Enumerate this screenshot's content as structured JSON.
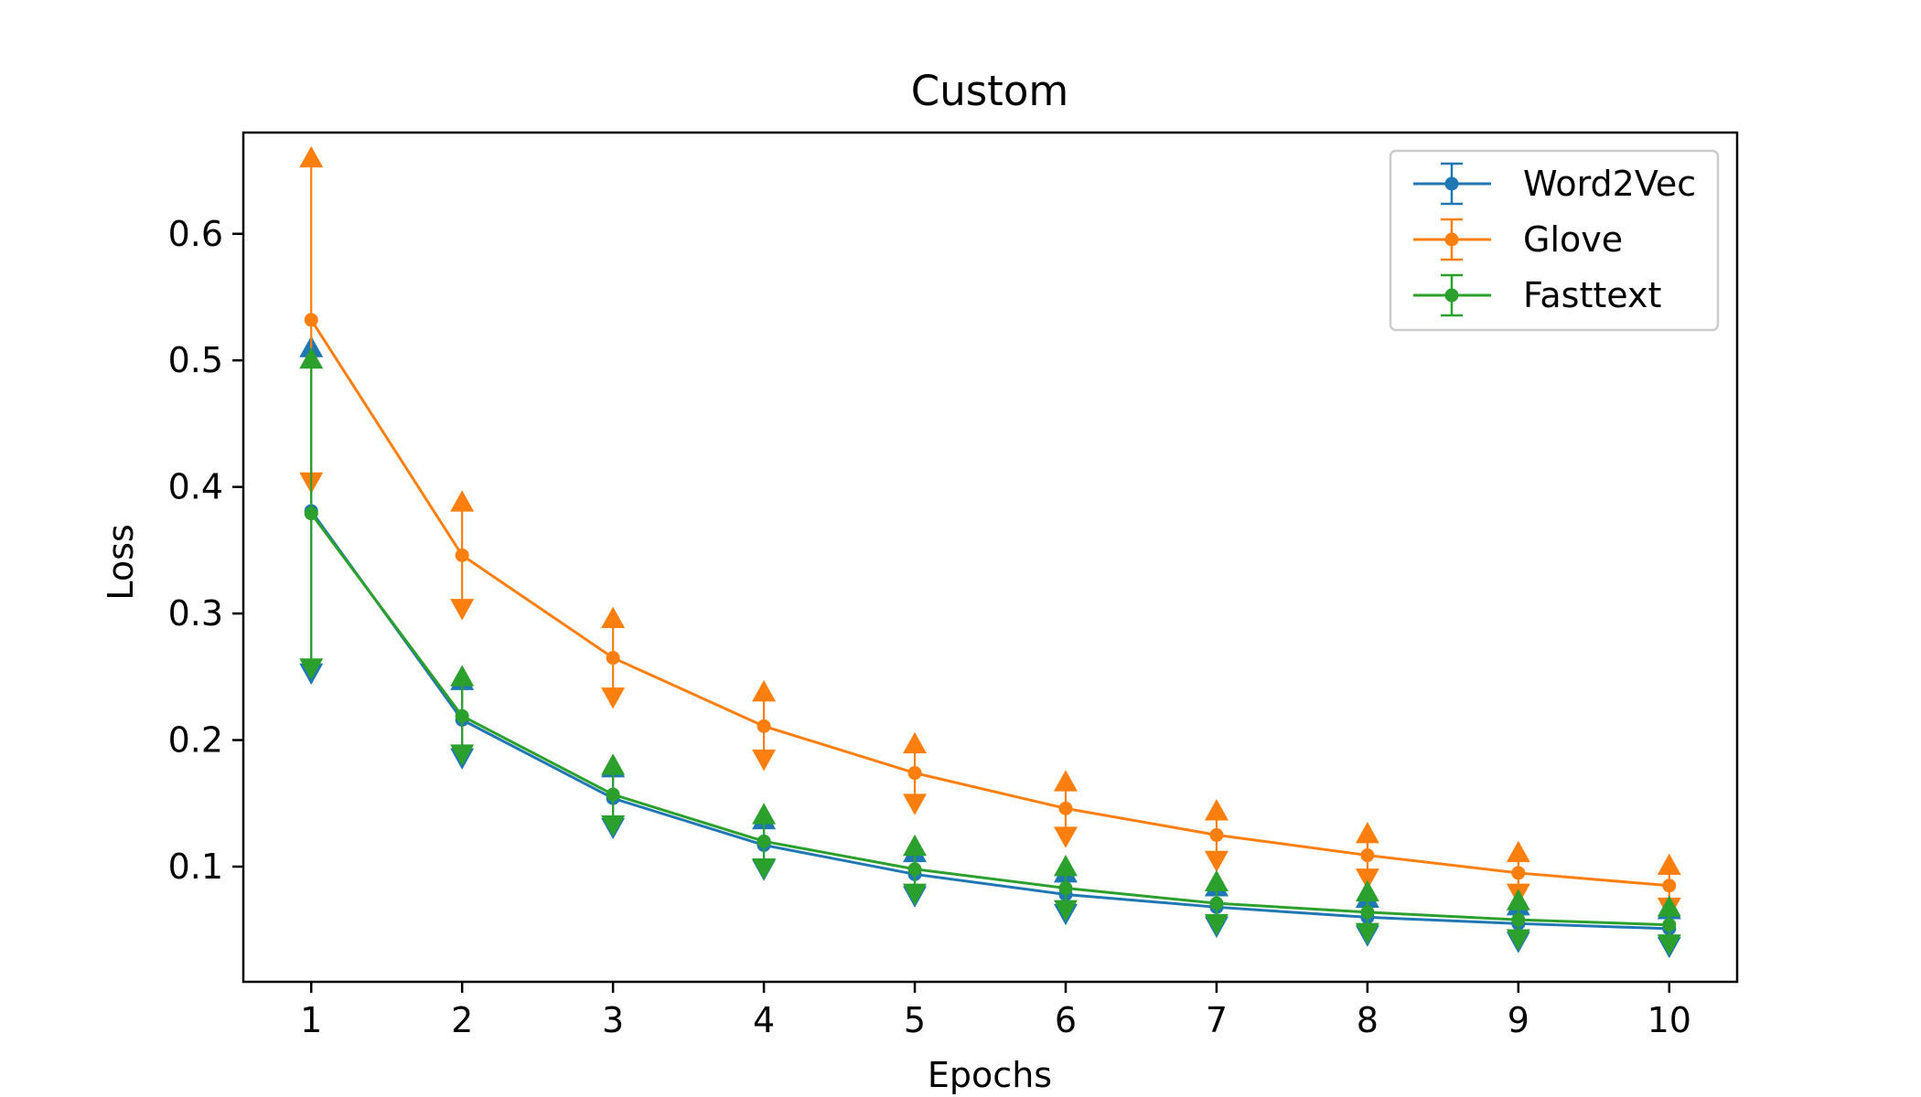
{
  "chart_data": {
    "type": "line",
    "title": "Custom",
    "xlabel": "Epochs",
    "ylabel": "Loss",
    "x": [
      1,
      2,
      3,
      4,
      5,
      6,
      7,
      8,
      9,
      10
    ],
    "xticks": [
      "1",
      "2",
      "3",
      "4",
      "5",
      "6",
      "7",
      "8",
      "9",
      "10"
    ],
    "yticks": [
      "0.1",
      "0.2",
      "0.3",
      "0.4",
      "0.5",
      "0.6"
    ],
    "ytick_values": [
      0.1,
      0.2,
      0.3,
      0.4,
      0.5,
      0.6
    ],
    "xlim": [
      0.55,
      10.45
    ],
    "ylim": [
      0.009,
      0.68
    ],
    "grid": false,
    "legend_position": "upper right",
    "error_bars": "upper and lower limits marked with triangles",
    "series": [
      {
        "name": "Word2Vec",
        "color": "#1f77b4",
        "values": [
          0.381,
          0.216,
          0.154,
          0.117,
          0.094,
          0.078,
          0.068,
          0.06,
          0.055,
          0.051
        ],
        "upper": [
          0.51,
          0.247,
          0.178,
          0.137,
          0.111,
          0.095,
          0.084,
          0.075,
          0.069,
          0.066
        ],
        "lower": [
          0.253,
          0.186,
          0.131,
          0.098,
          0.077,
          0.063,
          0.053,
          0.046,
          0.041,
          0.037
        ]
      },
      {
        "name": "Glove",
        "color": "#ff7f0e",
        "values": [
          0.532,
          0.346,
          0.265,
          0.211,
          0.174,
          0.146,
          0.125,
          0.109,
          0.095,
          0.085
        ],
        "upper": [
          0.66,
          0.388,
          0.296,
          0.238,
          0.197,
          0.167,
          0.144,
          0.126,
          0.111,
          0.101
        ],
        "lower": [
          0.404,
          0.304,
          0.234,
          0.185,
          0.15,
          0.124,
          0.105,
          0.091,
          0.079,
          0.068
        ]
      },
      {
        "name": "Fasttext",
        "color": "#2ca02c",
        "values": [
          0.379,
          0.219,
          0.157,
          0.12,
          0.098,
          0.083,
          0.071,
          0.064,
          0.058,
          0.054
        ],
        "upper": [
          0.501,
          0.25,
          0.18,
          0.141,
          0.116,
          0.1,
          0.088,
          0.08,
          0.073,
          0.068
        ],
        "lower": [
          0.257,
          0.189,
          0.133,
          0.099,
          0.079,
          0.066,
          0.055,
          0.048,
          0.043,
          0.039
        ]
      }
    ]
  }
}
